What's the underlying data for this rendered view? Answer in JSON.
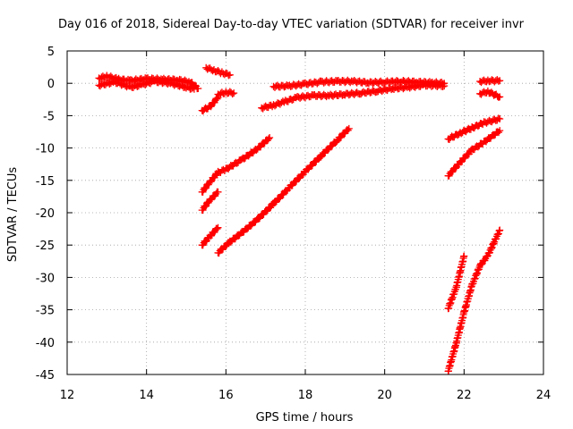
{
  "chart_data": {
    "type": "scatter",
    "title": "Day 016 of 2018, Sidereal Day-to-day VTEC variation (SDTVAR) for receiver invr",
    "xlabel": "GPS time / hours",
    "ylabel": "SDTVAR / TECUs",
    "xlim": [
      12,
      24
    ],
    "ylim": [
      -45,
      5
    ],
    "xticks": [
      12,
      14,
      16,
      18,
      20,
      22,
      24
    ],
    "yticks": [
      5,
      0,
      -5,
      -10,
      -15,
      -20,
      -25,
      -30,
      -35,
      -40,
      -45
    ],
    "grid": true,
    "marker": "plus",
    "color": "#ff0000",
    "series": [
      {
        "points": [
          [
            12.8,
            0.8
          ],
          [
            13.0,
            1.1
          ],
          [
            13.3,
            0.6
          ],
          [
            13.6,
            0.4
          ],
          [
            14.0,
            0.7
          ],
          [
            14.4,
            0.6
          ],
          [
            14.8,
            0.5
          ],
          [
            15.1,
            0.2
          ],
          [
            15.3,
            -0.8
          ]
        ]
      },
      {
        "points": [
          [
            12.8,
            -0.3
          ],
          [
            13.2,
            0.2
          ],
          [
            13.6,
            -0.6
          ],
          [
            13.9,
            -0.2
          ],
          [
            14.2,
            0.3
          ],
          [
            14.6,
            0.0
          ],
          [
            15.0,
            -0.6
          ],
          [
            15.2,
            -0.9
          ]
        ]
      },
      {
        "points": [
          [
            15.5,
            2.4
          ],
          [
            15.7,
            2.0
          ],
          [
            15.9,
            1.6
          ],
          [
            16.1,
            1.3
          ]
        ]
      },
      {
        "points": [
          [
            15.4,
            -4.2
          ],
          [
            15.6,
            -3.6
          ],
          [
            15.8,
            -2.2
          ]
        ]
      },
      {
        "points": [
          [
            15.8,
            -1.7
          ],
          [
            16.0,
            -1.4
          ],
          [
            16.2,
            -1.5
          ]
        ]
      },
      {
        "points": [
          [
            17.2,
            -0.5
          ],
          [
            17.6,
            -0.4
          ],
          [
            18.0,
            -0.1
          ],
          [
            18.4,
            0.2
          ],
          [
            18.8,
            0.3
          ],
          [
            19.2,
            0.3
          ],
          [
            19.6,
            0.1
          ],
          [
            20.0,
            0.2
          ],
          [
            20.4,
            0.3
          ],
          [
            20.8,
            0.2
          ],
          [
            21.2,
            0.1
          ],
          [
            21.5,
            0.0
          ]
        ]
      },
      {
        "points": [
          [
            16.9,
            -3.8
          ],
          [
            17.2,
            -3.4
          ],
          [
            17.5,
            -2.8
          ],
          [
            17.8,
            -2.2
          ],
          [
            18.2,
            -1.9
          ],
          [
            18.6,
            -1.9
          ],
          [
            19.0,
            -1.7
          ],
          [
            19.4,
            -1.5
          ],
          [
            19.8,
            -1.2
          ],
          [
            20.2,
            -0.8
          ],
          [
            20.6,
            -0.6
          ],
          [
            21.0,
            -0.3
          ],
          [
            21.5,
            -0.4
          ]
        ]
      },
      {
        "points": [
          [
            15.4,
            -16.8
          ],
          [
            15.6,
            -15.2
          ],
          [
            15.8,
            -13.8
          ],
          [
            16.0,
            -13.3
          ],
          [
            16.4,
            -11.8
          ],
          [
            16.8,
            -10.1
          ],
          [
            17.1,
            -8.4
          ]
        ]
      },
      {
        "points": [
          [
            15.4,
            -19.6
          ],
          [
            15.6,
            -18.0
          ],
          [
            15.8,
            -16.8
          ]
        ]
      },
      {
        "points": [
          [
            15.4,
            -25.0
          ],
          [
            15.6,
            -23.6
          ],
          [
            15.8,
            -22.3
          ]
        ]
      },
      {
        "points": [
          [
            15.8,
            -26.2
          ],
          [
            16.1,
            -24.5
          ],
          [
            16.4,
            -23.1
          ],
          [
            16.8,
            -21.0
          ],
          [
            17.2,
            -18.6
          ],
          [
            17.6,
            -16.1
          ],
          [
            18.0,
            -13.6
          ],
          [
            18.4,
            -11.2
          ],
          [
            18.8,
            -8.8
          ],
          [
            19.1,
            -7.0
          ]
        ]
      },
      {
        "points": [
          [
            21.6,
            -8.6
          ],
          [
            21.9,
            -7.7
          ],
          [
            22.2,
            -6.9
          ],
          [
            22.5,
            -6.1
          ],
          [
            22.9,
            -5.5
          ]
        ]
      },
      {
        "points": [
          [
            21.6,
            -14.3
          ],
          [
            21.9,
            -12.2
          ],
          [
            22.2,
            -10.3
          ],
          [
            22.5,
            -9.1
          ],
          [
            22.9,
            -7.3
          ]
        ]
      },
      {
        "points": [
          [
            22.4,
            0.3
          ],
          [
            22.6,
            0.4
          ],
          [
            22.9,
            0.4
          ]
        ]
      },
      {
        "points": [
          [
            22.4,
            -1.6
          ],
          [
            22.6,
            -1.3
          ],
          [
            22.9,
            -2.1
          ]
        ]
      },
      {
        "points": [
          [
            21.6,
            -34.8
          ],
          [
            21.8,
            -31.6
          ],
          [
            22.0,
            -26.7
          ]
        ]
      },
      {
        "points": [
          [
            21.6,
            -44.5
          ],
          [
            21.8,
            -40.2
          ],
          [
            22.0,
            -35.4
          ],
          [
            22.2,
            -31.2
          ],
          [
            22.4,
            -28.2
          ],
          [
            22.6,
            -26.6
          ],
          [
            22.9,
            -22.7
          ]
        ]
      }
    ]
  }
}
